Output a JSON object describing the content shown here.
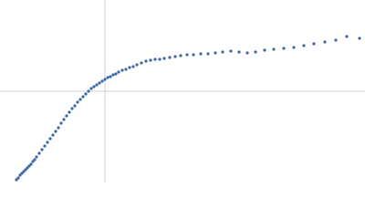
{
  "chart_data": {
    "type": "scatter",
    "color": "#3a66b5",
    "xlim": [
      0,
      400
    ],
    "ylim": [
      0,
      200
    ],
    "crosshair": {
      "x": 115,
      "y": 100
    },
    "x": [
      18,
      20,
      22,
      24,
      26,
      28,
      30,
      32,
      34,
      36,
      38,
      40,
      43,
      46,
      49,
      52,
      55,
      58,
      61,
      64,
      67,
      70,
      73,
      76,
      79,
      82,
      85,
      88,
      91,
      94,
      97,
      100,
      103,
      106,
      109,
      112,
      115,
      118,
      121,
      124,
      127,
      130,
      134,
      138,
      142,
      146,
      150,
      155,
      160,
      165,
      170,
      175,
      180,
      186,
      192,
      198,
      205,
      212,
      220,
      228,
      236,
      244,
      253,
      262,
      271,
      280,
      290,
      300,
      311,
      322,
      333,
      344,
      356,
      368,
      380,
      394
    ],
    "values": [
      3,
      5,
      8,
      10,
      12,
      14,
      16,
      18,
      20,
      23,
      25,
      28,
      32,
      36,
      40,
      44,
      48,
      52,
      56,
      60,
      65,
      69,
      73,
      77,
      81,
      84,
      88,
      91,
      94,
      97,
      100,
      103,
      105,
      107,
      109,
      111,
      113,
      115,
      116,
      118,
      119,
      121,
      123,
      124,
      126,
      127,
      129,
      131,
      133,
      134,
      135,
      135,
      136,
      137,
      138,
      139,
      140,
      140,
      141,
      141,
      142,
      143,
      144,
      143,
      142,
      143,
      145,
      146,
      147,
      148,
      150,
      152,
      154,
      156,
      160,
      158
    ]
  }
}
